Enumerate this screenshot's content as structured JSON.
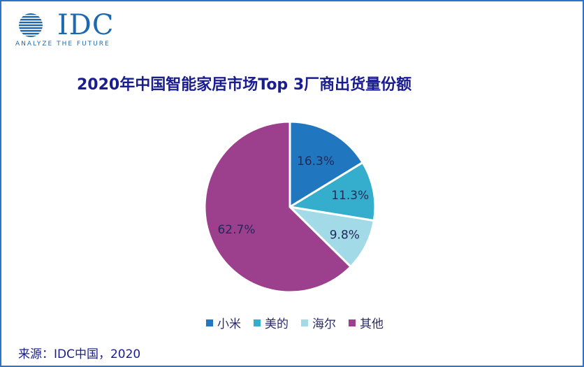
{
  "logo": {
    "name": "IDC",
    "tagline": "ANALYZE THE FUTURE",
    "color": "#1d69b0"
  },
  "source": "来源：IDC中国，2020",
  "chart_data": {
    "type": "pie",
    "title": "2020年中国智能家居市场Top 3厂商出货量份额",
    "categories": [
      "小米",
      "美的",
      "海尔",
      "其他"
    ],
    "values": [
      16.3,
      11.3,
      9.8,
      62.7
    ],
    "labels": [
      "16.3%",
      "11.3%",
      "9.8%",
      "62.7%"
    ],
    "colors": [
      "#2077bf",
      "#35aecd",
      "#a2dbe7",
      "#9c3f8c"
    ],
    "legend_position": "bottom"
  }
}
